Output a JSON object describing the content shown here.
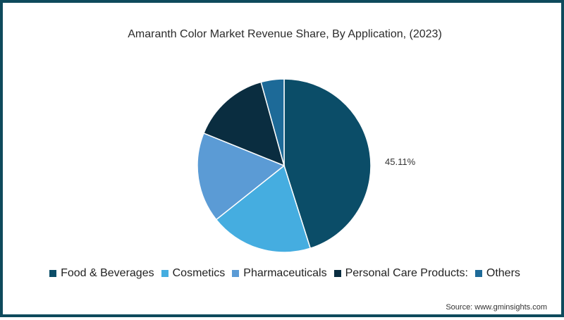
{
  "chart_data": {
    "type": "pie",
    "title": "Amaranth Color Market Revenue Share, By Application, (2023)",
    "categories": [
      "Food & Beverages",
      "Cosmetics",
      "Pharmaceuticals",
      "Personal Care Products:",
      "Others"
    ],
    "values": [
      45.11,
      19.2,
      16.8,
      14.6,
      4.29
    ],
    "colors": [
      "#0b4d68",
      "#45ade0",
      "#5b9bd5",
      "#0a2d40",
      "#1d6a98"
    ],
    "data_labels": [
      {
        "category": "Food & Beverages",
        "text": "45.11%"
      }
    ],
    "legend_position": "bottom",
    "start_angle_deg": 0,
    "direction": "clockwise"
  },
  "labels": {
    "food_pct": "45.11%"
  },
  "legend": {
    "items": [
      {
        "label": "Food & Beverages",
        "color": "#0b4d68"
      },
      {
        "label": "Cosmetics",
        "color": "#45ade0"
      },
      {
        "label": "Pharmaceuticals",
        "color": "#5b9bd5"
      },
      {
        "label": "Personal Care Products:",
        "color": "#0a2d40"
      },
      {
        "label": "Others",
        "color": "#1d6a98"
      }
    ]
  },
  "source": "Source: www.gminsights.com"
}
